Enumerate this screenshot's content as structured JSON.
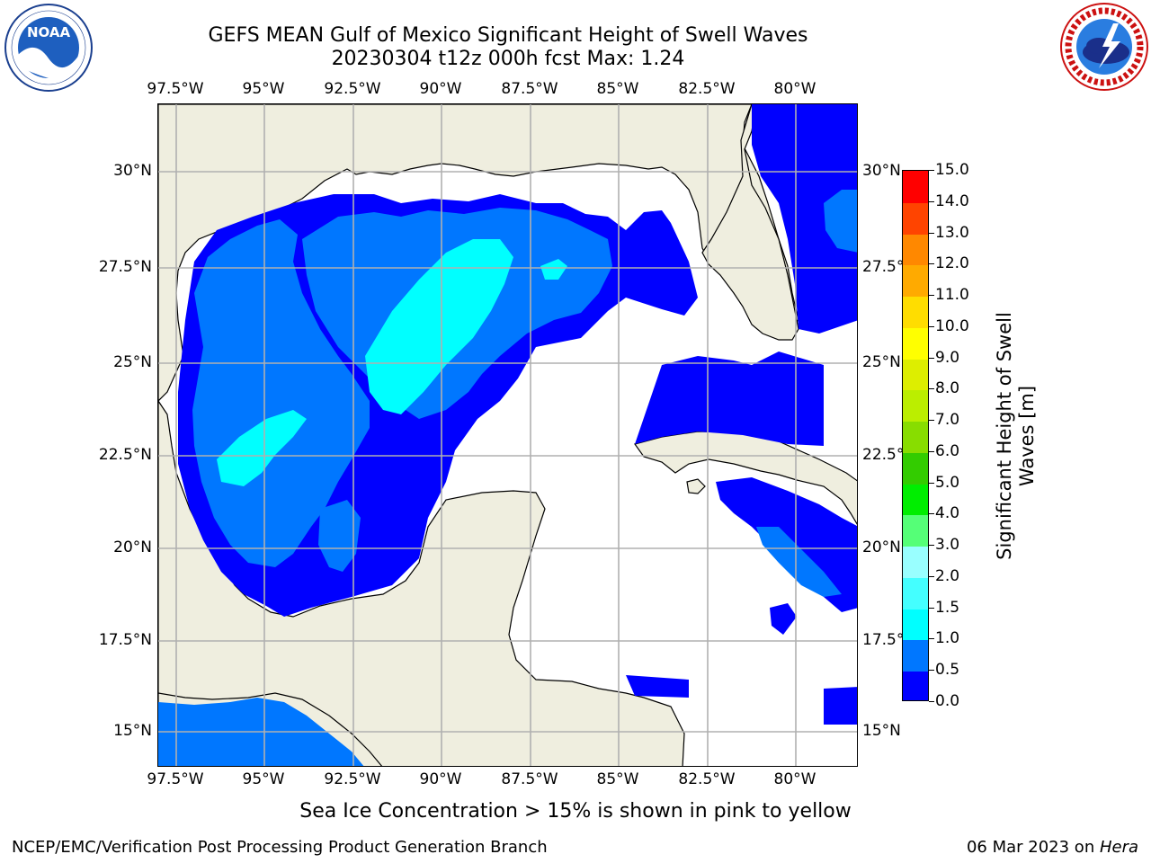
{
  "header": {
    "title_line1": "GEFS MEAN Gulf of Mexico Significant Height of Swell Waves",
    "title_line2": "20230304 t12z 000h fcst   Max: 1.24"
  },
  "logos": {
    "left": {
      "name": "NOAA",
      "ring_text": "NATIONAL OCEANIC AND ATMOSPHERIC ADMINISTRATION · U.S. DEPARTMENT OF COMMERCE"
    },
    "right": {
      "name": "NATIONAL WEATHER SERVICE"
    }
  },
  "axes": {
    "lon_ticks": [
      "97.5°W",
      "95°W",
      "92.5°W",
      "90°W",
      "87.5°W",
      "85°W",
      "82.5°W",
      "80°W"
    ],
    "lat_ticks_left": [
      "30°N",
      "27.5°N",
      "25°N",
      "22.5°N",
      "20°N",
      "17.5°N",
      "15°N"
    ],
    "lat_ticks_right": [
      "30°N",
      "27.5°",
      "25°N",
      "22.5°",
      "20°N",
      "17.5°",
      "15°N"
    ]
  },
  "colorbar": {
    "label_line1": "Significant Height of Swell",
    "label_line2": "Waves [m]",
    "ticks": [
      "0.0",
      "0.5",
      "1.0",
      "1.5",
      "2.0",
      "3.0",
      "4.0",
      "5.0",
      "6.0",
      "7.0",
      "8.0",
      "9.0",
      "10.0",
      "11.0",
      "12.0",
      "13.0",
      "14.0",
      "15.0"
    ],
    "colors": [
      "#0000ff",
      "#0077ff",
      "#00ffff",
      "#44ffff",
      "#99ffff",
      "#55ff77",
      "#00ee00",
      "#33cc00",
      "#88dd00",
      "#bbee00",
      "#ddee00",
      "#ffff00",
      "#ffdd00",
      "#ffaa00",
      "#ff8800",
      "#ff4400",
      "#ff0000"
    ]
  },
  "map": {
    "land_color": "#efeedf",
    "ocean_color": "#ffffff",
    "grid_color": "#b0b0b0"
  },
  "notes": {
    "sea_ice": "Sea Ice Concentration > 15% is shown in pink to yellow"
  },
  "footer": {
    "left": "NCEP/EMC/Verification Post Processing Product Generation Branch",
    "right_date": "06 Mar 2023 on ",
    "right_host": "Hera"
  }
}
